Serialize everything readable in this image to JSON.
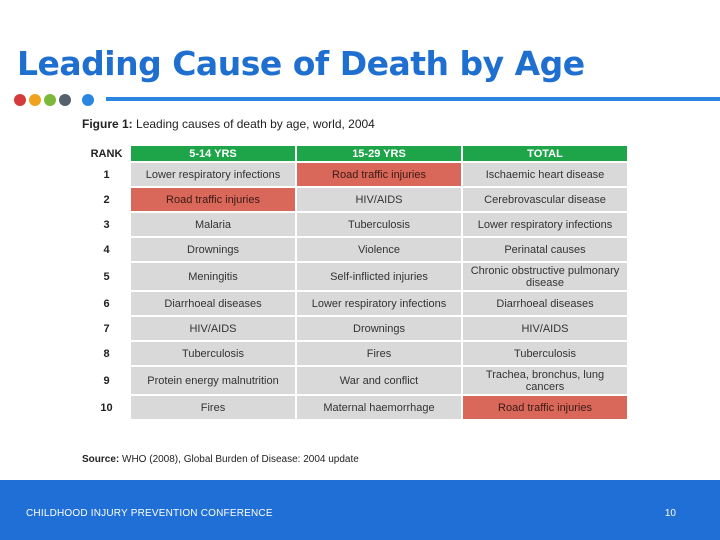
{
  "slide": {
    "title": "Leading Cause of Death by Age",
    "accent_color": "#1e6fd0",
    "dot_colors": [
      "#d63b3b",
      "#f0a21c",
      "#7cb83a",
      "#54606b",
      "#2a86e0"
    ]
  },
  "figure": {
    "label": "Figure 1:",
    "caption": "Leading causes of death by age, world, 2004",
    "header_color": "#1ea449",
    "highlight_color": "#d9685a",
    "columns": [
      "RANK",
      "5-14 YRS",
      "15-29 YRS",
      "TOTAL"
    ],
    "rows": [
      {
        "rank": "1",
        "c1": "Lower respiratory infections",
        "c2": "Road traffic injuries",
        "c3": "Ischaemic heart disease"
      },
      {
        "rank": "2",
        "c1": "Road traffic injuries",
        "c2": "HIV/AIDS",
        "c3": "Cerebrovascular disease"
      },
      {
        "rank": "3",
        "c1": "Malaria",
        "c2": "Tuberculosis",
        "c3": "Lower respiratory infections"
      },
      {
        "rank": "4",
        "c1": "Drownings",
        "c2": "Violence",
        "c3": "Perinatal causes"
      },
      {
        "rank": "5",
        "c1": "Meningitis",
        "c2": "Self-inflicted injuries",
        "c3": "Chronic obstructive pulmonary disease"
      },
      {
        "rank": "6",
        "c1": "Diarrhoeal diseases",
        "c2": "Lower respiratory infections",
        "c3": "Diarrhoeal diseases"
      },
      {
        "rank": "7",
        "c1": "HIV/AIDS",
        "c2": "Drownings",
        "c3": "HIV/AIDS"
      },
      {
        "rank": "8",
        "c1": "Tuberculosis",
        "c2": "Fires",
        "c3": "Tuberculosis"
      },
      {
        "rank": "9",
        "c1": "Protein energy malnutrition",
        "c2": "War and conflict",
        "c3": "Trachea, bronchus, lung cancers"
      },
      {
        "rank": "10",
        "c1": "Fires",
        "c2": "Maternal haemorrhage",
        "c3": "Road traffic injuries"
      }
    ],
    "source_label": "Source:",
    "source_text": "WHO (2008), Global Burden of Disease: 2004 update"
  },
  "footer": {
    "conference": "CHILDHOOD INJURY PREVENTION CONFERENCE",
    "page_number": "10"
  }
}
